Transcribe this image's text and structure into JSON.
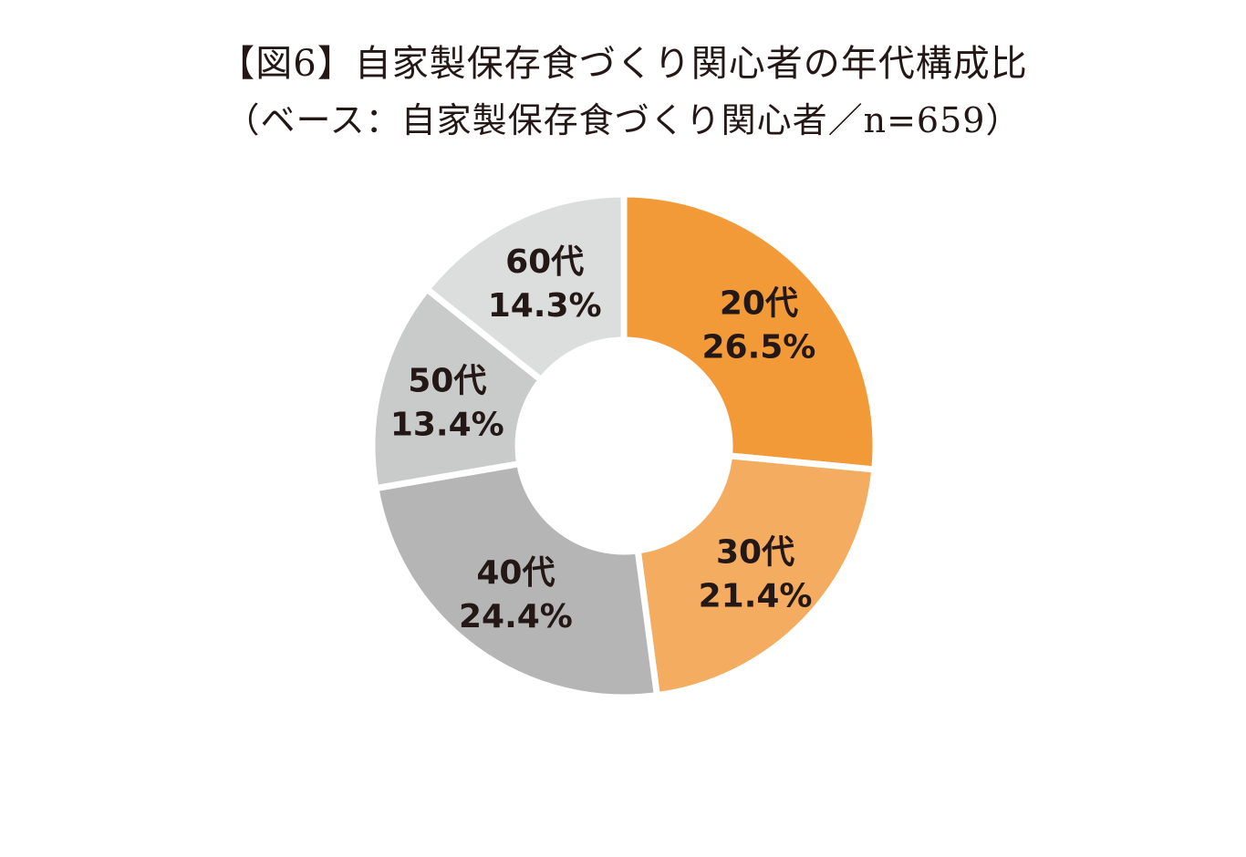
{
  "chart_data": {
    "type": "pie",
    "title": "【図6】自家製保存食づくり関心者の年代構成比",
    "subtitle": "（ベース：自家製保存食づくり関心者／n=659）",
    "categories": [
      "20代",
      "30代",
      "40代",
      "50代",
      "60代"
    ],
    "values": [
      26.5,
      21.4,
      24.4,
      13.4,
      14.3
    ],
    "value_labels": [
      "26.5%",
      "21.4%",
      "24.4%",
      "13.4%",
      "14.3%"
    ],
    "colors": [
      "#F29A38",
      "#F4AC60",
      "#B5B5B6",
      "#C9CACA",
      "#DCDDDD"
    ],
    "donut": true,
    "start_angle_deg": 0,
    "direction": "clockwise",
    "legend": "none"
  }
}
